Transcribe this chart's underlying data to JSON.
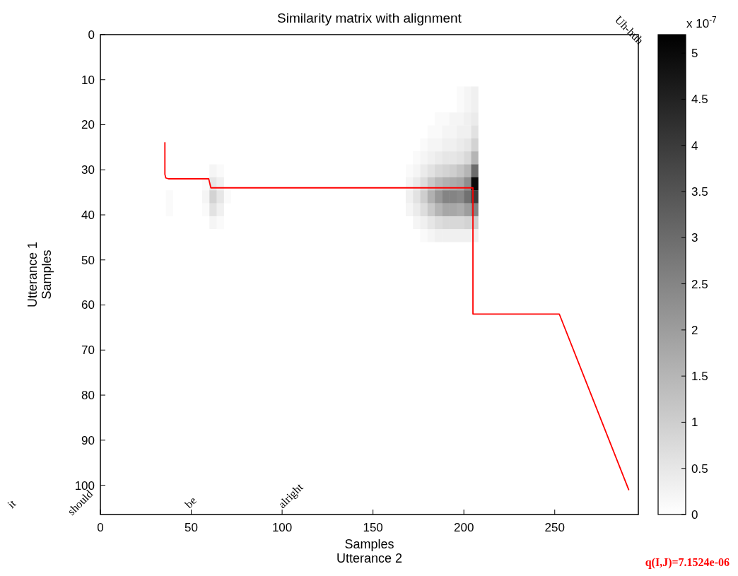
{
  "chart_data": {
    "type": "heatmap",
    "title": "Similarity matrix with alignment",
    "xlabel": "Samples\nUtterance 2",
    "ylabel": "Utterance 1\nSamples",
    "clabel": "x 10$^{-7}$",
    "xlim": [
      0,
      296
    ],
    "xticks": [
      0,
      50,
      100,
      150,
      200,
      250
    ],
    "ylim": [
      106.5,
      0
    ],
    "yticks": [
      0,
      10,
      20,
      30,
      40,
      50,
      60,
      70,
      80,
      90,
      100
    ],
    "clim": [
      0,
      5.2
    ],
    "cticks": [
      0,
      0.5,
      1,
      1.5,
      2,
      2.5,
      3,
      3.5,
      4,
      4.5,
      5
    ],
    "cells": [
      [
        0,
        0,
        0,
        0,
        0,
        0,
        0,
        0,
        0,
        0,
        0,
        0,
        0,
        0,
        0,
        0,
        0,
        0,
        0,
        0,
        0,
        0,
        0,
        0,
        0,
        0,
        0,
        0,
        0,
        0,
        0,
        0,
        0,
        0,
        0,
        0,
        0,
        0,
        0,
        0,
        0,
        0,
        0,
        0,
        0,
        0,
        0,
        0,
        0,
        0,
        0,
        0,
        0,
        0,
        0,
        0,
        0,
        0,
        0,
        0,
        0,
        0,
        0,
        0,
        0,
        0,
        0,
        0,
        0,
        0,
        0,
        0,
        0,
        0
      ],
      [
        0,
        0,
        0,
        0,
        0,
        0,
        0,
        0,
        0,
        0,
        0,
        0,
        0,
        0,
        0,
        0,
        0,
        0,
        0,
        0,
        0,
        0,
        0,
        0,
        0,
        0,
        0,
        0,
        0,
        0,
        0,
        0,
        0,
        0,
        0,
        0,
        0,
        0,
        0,
        0,
        0,
        0,
        0,
        0,
        0,
        0,
        0,
        0,
        0,
        0,
        0,
        0,
        0,
        0,
        0,
        0,
        0,
        0,
        0,
        0,
        0,
        0,
        0,
        0,
        0,
        0,
        0,
        0,
        0,
        0,
        0,
        0,
        0,
        0
      ],
      [
        0,
        0,
        0,
        0,
        0,
        0,
        0,
        0,
        0,
        0,
        0,
        0,
        0,
        0,
        0,
        0,
        0,
        0,
        0,
        0,
        0,
        0,
        0,
        0,
        0,
        0,
        0,
        0,
        0,
        0,
        0,
        0,
        0,
        0,
        0,
        0,
        0,
        0,
        0,
        0,
        0,
        0,
        0,
        0,
        0,
        0,
        0,
        0,
        0,
        0,
        0,
        0,
        0,
        0,
        0,
        0,
        0,
        0,
        0,
        0,
        0,
        0,
        0,
        0,
        0,
        0,
        0,
        0,
        0,
        0,
        0,
        0,
        0,
        0
      ],
      [
        0,
        0,
        0,
        0,
        0,
        0,
        0,
        0,
        0,
        0,
        0,
        0,
        0,
        0,
        0,
        0,
        0,
        0,
        0,
        0,
        0,
        0,
        0,
        0,
        0,
        0,
        0,
        0,
        0,
        0,
        0,
        0,
        0,
        0,
        0,
        0,
        0,
        0,
        0,
        0,
        0,
        0,
        0,
        0,
        0,
        0,
        0,
        0,
        0,
        0,
        0,
        0,
        0,
        0,
        0,
        0,
        0,
        0,
        0,
        0,
        0,
        0,
        0,
        0,
        0,
        0,
        0,
        0,
        0,
        0,
        0,
        0,
        0,
        0
      ],
      [
        0,
        0,
        0,
        0,
        0,
        0,
        0,
        0,
        0,
        0,
        0,
        0,
        0,
        0,
        0,
        0,
        0,
        0,
        0,
        0,
        0,
        0,
        0,
        0,
        0,
        0,
        0,
        0,
        0,
        0,
        0,
        0,
        0,
        0,
        0,
        0,
        0,
        0,
        0,
        0,
        0,
        0,
        0,
        0,
        0,
        0,
        0,
        0,
        0,
        0.1,
        0.2,
        0.3,
        0,
        0,
        0,
        0,
        0,
        0,
        0,
        0,
        0,
        0,
        0,
        0,
        0,
        0,
        0,
        0,
        0,
        0,
        0,
        0,
        0,
        0
      ],
      [
        0,
        0,
        0,
        0,
        0,
        0,
        0,
        0,
        0,
        0,
        0,
        0,
        0,
        0,
        0,
        0,
        0,
        0,
        0,
        0,
        0,
        0,
        0,
        0,
        0,
        0,
        0,
        0,
        0,
        0,
        0,
        0,
        0,
        0,
        0,
        0,
        0,
        0,
        0,
        0,
        0,
        0,
        0,
        0,
        0,
        0,
        0,
        0,
        0,
        0.1,
        0.2,
        0.3,
        0,
        0,
        0,
        0,
        0,
        0,
        0,
        0,
        0,
        0,
        0,
        0,
        0,
        0,
        0,
        0,
        0,
        0,
        0,
        0,
        0,
        0
      ],
      [
        0,
        0,
        0,
        0,
        0,
        0,
        0,
        0,
        0,
        0,
        0,
        0,
        0,
        0,
        0,
        0,
        0,
        0,
        0,
        0,
        0,
        0,
        0,
        0,
        0,
        0,
        0,
        0,
        0,
        0,
        0,
        0,
        0,
        0,
        0,
        0,
        0,
        0,
        0,
        0,
        0,
        0,
        0,
        0,
        0,
        0,
        0.1,
        0.1,
        0.2,
        0.2,
        0.3,
        0.4,
        0,
        0,
        0,
        0,
        0,
        0,
        0,
        0,
        0,
        0,
        0,
        0,
        0,
        0,
        0,
        0,
        0,
        0,
        0,
        0,
        0,
        0
      ],
      [
        0,
        0,
        0,
        0,
        0,
        0,
        0,
        0,
        0,
        0,
        0,
        0,
        0,
        0,
        0,
        0,
        0,
        0,
        0,
        0,
        0,
        0,
        0,
        0,
        0,
        0,
        0,
        0,
        0,
        0,
        0,
        0,
        0,
        0,
        0,
        0,
        0,
        0,
        0,
        0,
        0,
        0,
        0,
        0,
        0,
        0.1,
        0.1,
        0.2,
        0.2,
        0.3,
        0.3,
        0.6,
        0,
        0,
        0,
        0,
        0,
        0,
        0,
        0,
        0,
        0,
        0,
        0,
        0,
        0,
        0,
        0,
        0,
        0,
        0,
        0,
        0,
        0
      ],
      [
        0,
        0,
        0,
        0,
        0,
        0,
        0,
        0,
        0,
        0,
        0,
        0,
        0,
        0,
        0,
        0,
        0,
        0,
        0,
        0,
        0,
        0,
        0,
        0,
        0,
        0,
        0,
        0,
        0,
        0,
        0,
        0,
        0,
        0,
        0,
        0,
        0,
        0,
        0,
        0,
        0,
        0,
        0,
        0,
        0.1,
        0.2,
        0.2,
        0.3,
        0.3,
        0.4,
        0.5,
        0.9,
        0,
        0,
        0,
        0,
        0,
        0,
        0,
        0,
        0,
        0,
        0,
        0,
        0,
        0,
        0,
        0,
        0,
        0,
        0,
        0,
        0,
        0
      ],
      [
        0,
        0,
        0,
        0,
        0,
        0,
        0,
        0,
        0,
        0,
        0,
        0,
        0,
        0,
        0,
        0,
        0,
        0,
        0,
        0,
        0,
        0,
        0,
        0,
        0,
        0,
        0,
        0,
        0,
        0,
        0,
        0,
        0,
        0,
        0,
        0,
        0,
        0,
        0,
        0,
        0,
        0,
        0,
        0.1,
        0.2,
        0.3,
        0.4,
        0.5,
        0.5,
        0.6,
        0.8,
        1.5,
        0,
        0,
        0,
        0,
        0,
        0,
        0,
        0,
        0,
        0,
        0,
        0,
        0,
        0,
        0,
        0,
        0,
        0,
        0,
        0,
        0,
        0
      ],
      [
        0,
        0,
        0,
        0,
        0,
        0,
        0,
        0,
        0,
        0,
        0,
        0,
        0,
        0,
        0,
        0.2,
        0.1,
        0,
        0,
        0,
        0,
        0,
        0,
        0,
        0,
        0,
        0,
        0,
        0,
        0,
        0,
        0,
        0,
        0,
        0,
        0,
        0,
        0,
        0,
        0,
        0,
        0,
        0.1,
        0.2,
        0.4,
        0.6,
        0.8,
        0.9,
        1,
        1.2,
        1.5,
        3,
        0,
        0,
        0,
        0,
        0,
        0,
        0,
        0,
        0,
        0,
        0,
        0,
        0,
        0,
        0,
        0,
        0,
        0,
        0,
        0,
        0,
        0
      ],
      [
        0,
        0,
        0,
        0,
        0,
        0,
        0,
        0,
        0,
        0,
        0,
        0,
        0,
        0,
        0.1,
        0.5,
        0.3,
        0,
        0,
        0,
        0,
        0,
        0,
        0,
        0,
        0,
        0,
        0,
        0,
        0,
        0,
        0,
        0,
        0,
        0,
        0,
        0,
        0,
        0,
        0,
        0,
        0,
        0.2,
        0.4,
        0.7,
        1.1,
        1.4,
        1.6,
        1.7,
        1.8,
        2.3,
        5,
        0,
        0,
        0,
        0,
        0,
        0,
        0,
        0,
        0,
        0,
        0,
        0,
        0,
        0,
        0,
        0,
        0,
        0,
        0,
        0,
        0,
        0
      ],
      [
        0,
        0,
        0,
        0,
        0,
        0,
        0,
        0,
        0,
        0.1,
        0,
        0,
        0,
        0,
        0.2,
        0.9,
        0.5,
        0.1,
        0,
        0,
        0,
        0,
        0,
        0,
        0,
        0,
        0,
        0,
        0,
        0,
        0,
        0,
        0,
        0,
        0,
        0,
        0,
        0,
        0,
        0,
        0,
        0,
        0.3,
        0.6,
        1,
        1.6,
        2.1,
        2.5,
        2.5,
        2.4,
        2.9,
        4,
        0,
        0,
        0,
        0,
        0,
        0,
        0,
        0,
        0,
        0,
        0,
        0,
        0,
        0,
        0,
        0,
        0,
        0,
        0,
        0,
        0,
        0
      ],
      [
        0,
        0,
        0,
        0,
        0,
        0,
        0,
        0,
        0,
        0.1,
        0,
        0,
        0,
        0,
        0.1,
        0.6,
        0.3,
        0,
        0,
        0,
        0,
        0,
        0,
        0,
        0,
        0,
        0,
        0,
        0,
        0,
        0,
        0,
        0,
        0,
        0,
        0,
        0,
        0,
        0,
        0,
        0,
        0,
        0.2,
        0.4,
        0.7,
        1.1,
        1.5,
        1.8,
        1.8,
        1.7,
        2,
        2.5,
        0,
        0,
        0,
        0,
        0,
        0,
        0,
        0,
        0,
        0,
        0,
        0,
        0,
        0,
        0,
        0,
        0,
        0,
        0,
        0,
        0,
        0
      ],
      [
        0,
        0,
        0,
        0,
        0,
        0,
        0,
        0,
        0,
        0,
        0,
        0,
        0,
        0,
        0,
        0.2,
        0.1,
        0,
        0,
        0,
        0,
        0,
        0,
        0,
        0,
        0,
        0,
        0,
        0,
        0,
        0,
        0,
        0,
        0,
        0,
        0,
        0,
        0,
        0,
        0,
        0,
        0,
        0,
        0.2,
        0.3,
        0.5,
        0.7,
        0.8,
        0.8,
        0.8,
        0.9,
        1,
        0,
        0,
        0,
        0,
        0,
        0,
        0,
        0,
        0,
        0,
        0,
        0,
        0,
        0,
        0,
        0,
        0,
        0,
        0,
        0,
        0,
        0
      ],
      [
        0,
        0,
        0,
        0,
        0,
        0,
        0,
        0,
        0,
        0,
        0,
        0,
        0,
        0,
        0,
        0,
        0,
        0,
        0,
        0,
        0,
        0,
        0,
        0,
        0,
        0,
        0,
        0,
        0,
        0,
        0,
        0,
        0,
        0,
        0,
        0,
        0,
        0,
        0,
        0,
        0,
        0,
        0,
        0,
        0.1,
        0.2,
        0.3,
        0.3,
        0.3,
        0.3,
        0.3,
        0.3,
        0,
        0,
        0,
        0,
        0,
        0,
        0,
        0,
        0,
        0,
        0,
        0,
        0,
        0,
        0,
        0,
        0,
        0,
        0,
        0,
        0,
        0
      ],
      [
        0,
        0,
        0,
        0,
        0,
        0,
        0,
        0,
        0,
        0,
        0,
        0,
        0,
        0,
        0,
        0,
        0,
        0,
        0,
        0,
        0,
        0,
        0,
        0,
        0,
        0,
        0,
        0,
        0,
        0,
        0,
        0,
        0,
        0,
        0,
        0,
        0,
        0,
        0,
        0,
        0,
        0,
        0,
        0,
        0,
        0,
        0,
        0,
        0,
        0,
        0,
        0,
        0,
        0,
        0,
        0,
        0,
        0,
        0,
        0,
        0,
        0,
        0,
        0,
        0,
        0,
        0,
        0,
        0,
        0,
        0,
        0,
        0,
        0
      ],
      [
        0,
        0,
        0,
        0,
        0,
        0,
        0,
        0,
        0,
        0,
        0,
        0,
        0,
        0,
        0,
        0,
        0,
        0,
        0,
        0,
        0,
        0,
        0,
        0,
        0,
        0,
        0,
        0,
        0,
        0,
        0,
        0,
        0,
        0,
        0,
        0,
        0,
        0,
        0,
        0,
        0,
        0,
        0,
        0,
        0,
        0,
        0,
        0,
        0,
        0,
        0,
        0,
        0,
        0,
        0,
        0,
        0,
        0,
        0,
        0,
        0,
        0,
        0,
        0,
        0,
        0,
        0,
        0,
        0,
        0,
        0,
        0,
        0,
        0
      ],
      [
        0,
        0,
        0,
        0,
        0,
        0,
        0,
        0,
        0,
        0,
        0,
        0,
        0,
        0,
        0,
        0,
        0,
        0,
        0,
        0,
        0,
        0,
        0,
        0,
        0,
        0,
        0,
        0,
        0,
        0,
        0,
        0,
        0,
        0,
        0,
        0,
        0,
        0,
        0,
        0,
        0,
        0,
        0,
        0,
        0,
        0,
        0,
        0,
        0,
        0,
        0,
        0,
        0,
        0,
        0,
        0,
        0,
        0,
        0,
        0,
        0,
        0,
        0,
        0,
        0,
        0,
        0,
        0,
        0,
        0,
        0,
        0,
        0,
        0
      ],
      [
        0,
        0,
        0,
        0,
        0,
        0,
        0,
        0,
        0,
        0,
        0,
        0,
        0,
        0,
        0,
        0,
        0,
        0,
        0,
        0,
        0,
        0,
        0,
        0,
        0,
        0,
        0,
        0,
        0,
        0,
        0,
        0,
        0,
        0,
        0,
        0,
        0,
        0,
        0,
        0,
        0,
        0,
        0,
        0,
        0,
        0,
        0,
        0,
        0,
        0,
        0,
        0,
        0,
        0,
        0,
        0,
        0,
        0,
        0,
        0,
        0,
        0,
        0,
        0,
        0,
        0,
        0,
        0,
        0,
        0,
        0,
        0,
        0,
        0
      ],
      [
        0,
        0,
        0,
        0,
        0,
        0,
        0,
        0,
        0,
        0,
        0,
        0,
        0,
        0,
        0,
        0,
        0,
        0,
        0,
        0,
        0,
        0,
        0,
        0,
        0,
        0,
        0,
        0,
        0,
        0,
        0,
        0,
        0,
        0,
        0,
        0,
        0,
        0,
        0,
        0,
        0,
        0,
        0,
        0,
        0,
        0,
        0,
        0,
        0,
        0,
        0,
        0,
        0,
        0,
        0,
        0,
        0,
        0,
        0,
        0,
        0,
        0,
        0,
        0,
        0,
        0,
        0,
        0,
        0,
        0,
        0,
        0,
        0,
        0
      ],
      [
        0,
        0,
        0,
        0,
        0,
        0,
        0,
        0,
        0,
        0,
        0,
        0,
        0,
        0,
        0,
        0,
        0,
        0,
        0,
        0,
        0,
        0,
        0,
        0,
        0,
        0,
        0,
        0,
        0,
        0,
        0,
        0,
        0,
        0,
        0,
        0,
        0,
        0,
        0,
        0,
        0,
        0,
        0,
        0,
        0,
        0,
        0,
        0,
        0,
        0,
        0,
        0,
        0,
        0,
        0,
        0,
        0,
        0,
        0,
        0,
        0,
        0,
        0,
        0,
        0,
        0,
        0,
        0,
        0,
        0,
        0,
        0,
        0,
        0
      ],
      [
        0,
        0,
        0,
        0,
        0,
        0,
        0,
        0,
        0,
        0,
        0,
        0,
        0,
        0,
        0,
        0,
        0,
        0,
        0,
        0,
        0,
        0,
        0,
        0,
        0,
        0,
        0,
        0,
        0,
        0,
        0,
        0,
        0,
        0,
        0,
        0,
        0,
        0,
        0,
        0,
        0,
        0,
        0,
        0,
        0,
        0,
        0,
        0,
        0,
        0,
        0,
        0,
        0,
        0,
        0,
        0,
        0,
        0,
        0,
        0,
        0,
        0,
        0,
        0,
        0,
        0,
        0,
        0,
        0,
        0,
        0,
        0,
        0,
        0
      ],
      [
        0,
        0,
        0,
        0,
        0,
        0,
        0,
        0,
        0,
        0,
        0,
        0,
        0,
        0,
        0,
        0,
        0,
        0,
        0,
        0,
        0,
        0,
        0,
        0,
        0,
        0,
        0,
        0,
        0,
        0,
        0,
        0,
        0,
        0,
        0,
        0,
        0,
        0,
        0,
        0,
        0,
        0,
        0,
        0,
        0,
        0,
        0,
        0,
        0,
        0,
        0,
        0,
        0,
        0,
        0,
        0,
        0,
        0,
        0,
        0,
        0,
        0,
        0,
        0,
        0,
        0,
        0,
        0,
        0,
        0,
        0,
        0,
        0,
        0
      ],
      [
        0,
        0,
        0,
        0,
        0,
        0,
        0,
        0,
        0,
        0,
        0,
        0,
        0,
        0,
        0,
        0,
        0,
        0,
        0,
        0,
        0,
        0,
        0,
        0,
        0,
        0,
        0,
        0,
        0,
        0,
        0,
        0,
        0,
        0,
        0,
        0,
        0,
        0,
        0,
        0,
        0,
        0,
        0,
        0,
        0,
        0,
        0,
        0,
        0,
        0,
        0,
        0,
        0,
        0,
        0,
        0,
        0,
        0,
        0,
        0,
        0,
        0,
        0,
        0,
        0,
        0,
        0,
        0,
        0,
        0,
        0,
        0,
        0,
        0
      ],
      [
        0,
        0,
        0,
        0,
        0,
        0,
        0,
        0,
        0,
        0,
        0,
        0,
        0,
        0,
        0,
        0,
        0,
        0,
        0,
        0,
        0,
        0,
        0,
        0,
        0,
        0,
        0,
        0,
        0,
        0,
        0,
        0,
        0,
        0,
        0,
        0,
        0,
        0,
        0,
        0,
        0,
        0,
        0,
        0,
        0,
        0,
        0,
        0,
        0,
        0,
        0,
        0,
        0,
        0,
        0,
        0,
        0,
        0,
        0,
        0,
        0,
        0,
        0,
        0,
        0,
        0,
        0,
        0,
        0,
        0,
        0,
        0,
        0,
        0
      ],
      [
        0,
        0,
        0,
        0,
        0,
        0,
        0,
        0,
        0,
        0,
        0,
        0,
        0,
        0,
        0,
        0,
        0,
        0,
        0,
        0,
        0,
        0,
        0,
        0,
        0,
        0,
        0,
        0,
        0,
        0,
        0,
        0,
        0,
        0,
        0,
        0,
        0,
        0,
        0,
        0,
        0,
        0,
        0,
        0,
        0,
        0,
        0,
        0,
        0,
        0,
        0,
        0,
        0,
        0,
        0,
        0,
        0,
        0,
        0,
        0,
        0,
        0,
        0,
        0,
        0,
        0,
        0,
        0,
        0,
        0,
        0,
        0,
        0,
        0
      ],
      [
        0,
        0,
        0,
        0,
        0,
        0,
        0,
        0,
        0,
        0,
        0,
        0,
        0,
        0,
        0,
        0,
        0,
        0,
        0,
        0,
        0,
        0,
        0,
        0,
        0,
        0,
        0,
        0,
        0,
        0,
        0,
        0,
        0,
        0,
        0,
        0,
        0,
        0,
        0,
        0,
        0,
        0,
        0,
        0,
        0,
        0,
        0,
        0,
        0,
        0,
        0,
        0,
        0,
        0,
        0,
        0,
        0,
        0,
        0,
        0,
        0,
        0,
        0,
        0,
        0,
        0,
        0,
        0,
        0,
        0,
        0,
        0,
        0,
        0
      ],
      [
        0,
        0,
        0,
        0,
        0,
        0,
        0,
        0,
        0,
        0,
        0,
        0,
        0,
        0,
        0,
        0,
        0,
        0,
        0,
        0,
        0,
        0,
        0,
        0,
        0,
        0,
        0,
        0,
        0,
        0,
        0,
        0,
        0,
        0,
        0,
        0,
        0,
        0,
        0,
        0,
        0,
        0,
        0,
        0,
        0,
        0,
        0,
        0,
        0,
        0,
        0,
        0,
        0,
        0,
        0,
        0,
        0,
        0,
        0,
        0,
        0,
        0,
        0,
        0,
        0,
        0,
        0,
        0,
        0,
        0,
        0,
        0,
        0,
        0
      ],
      [
        0,
        0,
        0,
        0,
        0,
        0,
        0,
        0,
        0,
        0,
        0,
        0,
        0,
        0,
        0,
        0,
        0,
        0,
        0,
        0,
        0,
        0,
        0,
        0,
        0,
        0,
        0,
        0,
        0,
        0,
        0,
        0,
        0,
        0,
        0,
        0,
        0,
        0,
        0,
        0,
        0,
        0,
        0,
        0,
        0,
        0,
        0,
        0,
        0,
        0,
        0,
        0,
        0,
        0,
        0,
        0,
        0,
        0,
        0,
        0,
        0,
        0,
        0,
        0,
        0,
        0,
        0,
        0,
        0,
        0,
        0,
        0,
        0,
        0
      ],
      [
        0,
        0,
        0,
        0,
        0,
        0,
        0,
        0,
        0,
        0,
        0,
        0,
        0,
        0,
        0,
        0,
        0,
        0,
        0,
        0,
        0,
        0,
        0,
        0,
        0,
        0,
        0,
        0,
        0,
        0,
        0,
        0,
        0,
        0,
        0,
        0,
        0,
        0,
        0,
        0,
        0,
        0,
        0,
        0,
        0,
        0,
        0,
        0,
        0,
        0,
        0,
        0,
        0,
        0,
        0,
        0,
        0,
        0,
        0,
        0,
        0,
        0,
        0,
        0,
        0,
        0,
        0,
        0,
        0,
        0,
        0,
        0,
        0,
        0
      ],
      [
        0,
        0,
        0,
        0,
        0,
        0,
        0,
        0,
        0,
        0,
        0,
        0,
        0,
        0,
        0,
        0,
        0,
        0,
        0,
        0,
        0,
        0,
        0,
        0,
        0,
        0,
        0,
        0,
        0,
        0,
        0,
        0,
        0,
        0,
        0,
        0,
        0,
        0,
        0,
        0,
        0,
        0,
        0,
        0,
        0,
        0,
        0,
        0,
        0,
        0,
        0,
        0,
        0,
        0,
        0,
        0,
        0,
        0,
        0,
        0,
        0,
        0,
        0,
        0,
        0,
        0,
        0,
        0,
        0,
        0,
        0,
        0,
        0,
        0
      ],
      [
        0,
        0,
        0,
        0,
        0,
        0,
        0,
        0,
        0,
        0,
        0,
        0,
        0,
        0,
        0,
        0,
        0,
        0,
        0,
        0,
        0,
        0,
        0,
        0,
        0,
        0,
        0,
        0,
        0,
        0,
        0,
        0,
        0,
        0,
        0,
        0,
        0,
        0,
        0,
        0,
        0,
        0,
        0,
        0,
        0,
        0,
        0,
        0,
        0,
        0,
        0,
        0,
        0,
        0,
        0,
        0,
        0,
        0,
        0,
        0,
        0,
        0,
        0,
        0,
        0,
        0,
        0,
        0,
        0,
        0,
        0,
        0,
        0,
        0
      ],
      [
        0,
        0,
        0,
        0,
        0,
        0,
        0,
        0,
        0,
        0,
        0,
        0,
        0,
        0,
        0,
        0,
        0,
        0,
        0,
        0,
        0,
        0,
        0,
        0,
        0,
        0,
        0,
        0,
        0,
        0,
        0,
        0,
        0,
        0,
        0,
        0,
        0,
        0,
        0,
        0,
        0,
        0,
        0,
        0,
        0,
        0,
        0,
        0,
        0,
        0,
        0,
        0,
        0,
        0,
        0,
        0,
        0,
        0,
        0,
        0,
        0,
        0,
        0,
        0,
        0,
        0,
        0,
        0,
        0,
        0,
        0,
        0,
        0,
        0
      ],
      [
        0,
        0,
        0,
        0,
        0,
        0,
        0,
        0,
        0,
        0,
        0,
        0,
        0,
        0,
        0,
        0,
        0,
        0,
        0,
        0,
        0,
        0,
        0,
        0,
        0,
        0,
        0,
        0,
        0,
        0,
        0,
        0,
        0,
        0,
        0,
        0,
        0,
        0,
        0,
        0,
        0,
        0,
        0,
        0,
        0,
        0,
        0,
        0,
        0,
        0,
        0,
        0,
        0,
        0,
        0,
        0,
        0,
        0,
        0,
        0,
        0,
        0,
        0,
        0,
        0,
        0,
        0,
        0,
        0,
        0,
        0,
        0,
        0,
        0
      ],
      [
        0,
        0,
        0,
        0,
        0,
        0,
        0,
        0,
        0,
        0,
        0,
        0,
        0,
        0,
        0,
        0,
        0,
        0,
        0,
        0,
        0,
        0,
        0,
        0,
        0,
        0,
        0,
        0,
        0,
        0,
        0,
        0,
        0,
        0,
        0,
        0,
        0,
        0,
        0,
        0,
        0,
        0,
        0,
        0,
        0,
        0,
        0,
        0,
        0,
        0,
        0,
        0,
        0,
        0,
        0,
        0,
        0,
        0,
        0,
        0,
        0,
        0,
        0,
        0,
        0,
        0,
        0,
        0,
        0,
        0,
        0,
        0,
        0,
        0
      ],
      [
        0,
        0,
        0,
        0,
        0,
        0,
        0,
        0,
        0,
        0,
        0,
        0,
        0,
        0,
        0,
        0,
        0,
        0,
        0,
        0,
        0,
        0,
        0,
        0,
        0,
        0,
        0,
        0,
        0,
        0,
        0,
        0,
        0,
        0,
        0,
        0,
        0,
        0,
        0,
        0,
        0,
        0,
        0,
        0,
        0,
        0,
        0,
        0,
        0,
        0,
        0,
        0,
        0,
        0,
        0,
        0,
        0,
        0,
        0,
        0,
        0,
        0,
        0,
        0,
        0,
        0,
        0,
        0,
        0,
        0,
        0,
        0,
        0,
        0
      ]
    ],
    "series": [
      {
        "type": "line",
        "color": "#ff0000",
        "x": [
          35.5,
          35.5,
          36,
          37.5,
          59.6,
          60.8,
          205,
          205,
          252.5,
          290.7
        ],
        "values": [
          24,
          31,
          31.8,
          32,
          32,
          34,
          34,
          62,
          62,
          101
        ]
      }
    ],
    "annotations": [
      "it",
      "should",
      "be",
      "alright",
      "Uh-huh",
      "q(I,J)=7.1524e-06"
    ]
  }
}
